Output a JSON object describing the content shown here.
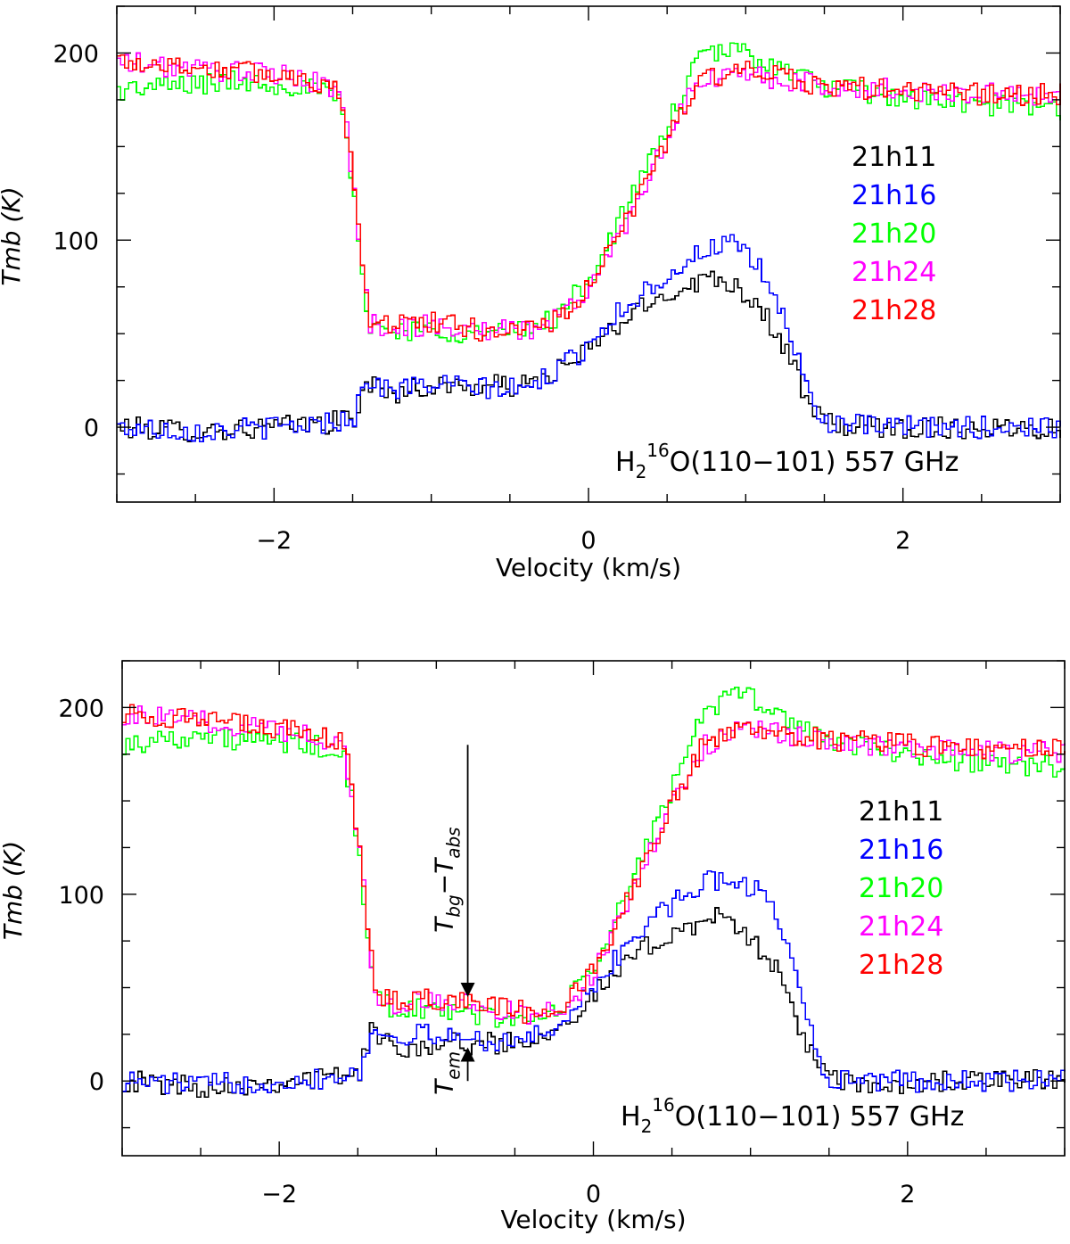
{
  "chart_data": [
    {
      "type": "line",
      "title": "",
      "xlabel": "Velocity (km/s)",
      "ylabel": "Tmb (K)",
      "xlim": [
        -3.0,
        3.0
      ],
      "ylim": [
        -40,
        225
      ],
      "xticks": [
        -2,
        0,
        2
      ],
      "xtick_labels": [
        "−2",
        "0",
        "2"
      ],
      "yticks": [
        0,
        100,
        200
      ],
      "ytick_labels": [
        "0",
        "100",
        "200"
      ],
      "line_label": {
        "prefix": "H",
        "sub": "2",
        "sup": "16",
        "rest": "O(110−101) 557 GHz"
      },
      "legend_position": "right",
      "series": [
        {
          "name": "21h11",
          "color": "#000000",
          "x": [
            -3.0,
            -2.5,
            -2.0,
            -1.7,
            -1.5,
            -1.42,
            -1.3,
            -1.0,
            -0.7,
            -0.4,
            -0.1,
            0.1,
            0.3,
            0.5,
            0.75,
            0.9,
            1.1,
            1.25,
            1.4,
            1.5,
            1.8,
            2.2,
            2.6,
            3.0
          ],
          "values": [
            0,
            -2,
            0,
            2,
            5,
            25,
            18,
            22,
            22,
            22,
            35,
            50,
            62,
            72,
            80,
            78,
            62,
            40,
            10,
            2,
            0,
            0,
            0,
            0
          ]
        },
        {
          "name": "21h16",
          "color": "#0000ff",
          "x": [
            -3.0,
            -2.5,
            -2.0,
            -1.7,
            -1.5,
            -1.42,
            -1.3,
            -1.0,
            -0.7,
            -0.4,
            -0.1,
            0.1,
            0.3,
            0.5,
            0.75,
            0.9,
            1.1,
            1.25,
            1.4,
            1.5,
            1.8,
            2.2,
            2.6,
            3.0
          ],
          "values": [
            0,
            -2,
            0,
            2,
            6,
            27,
            20,
            23,
            21,
            20,
            37,
            55,
            70,
            82,
            96,
            98,
            82,
            55,
            15,
            3,
            0,
            0,
            0,
            0
          ]
        },
        {
          "name": "21h20",
          "color": "#00ff00",
          "x": [
            -3.0,
            -2.6,
            -2.2,
            -1.8,
            -1.6,
            -1.55,
            -1.45,
            -1.4,
            -1.3,
            -1.0,
            -0.7,
            -0.4,
            -0.2,
            0.0,
            0.2,
            0.4,
            0.6,
            0.7,
            0.9,
            1.0,
            1.2,
            1.5,
            2.0,
            2.5,
            3.0
          ],
          "values": [
            180,
            183,
            185,
            182,
            175,
            155,
            80,
            55,
            52,
            52,
            50,
            52,
            60,
            80,
            112,
            145,
            180,
            198,
            202,
            200,
            192,
            182,
            176,
            172,
            170
          ]
        },
        {
          "name": "21h24",
          "color": "#ff00ff",
          "x": [
            -3.0,
            -2.6,
            -2.2,
            -1.8,
            -1.6,
            -1.55,
            -1.45,
            -1.4,
            -1.3,
            -1.0,
            -0.7,
            -0.4,
            -0.2,
            0.0,
            0.2,
            0.4,
            0.6,
            0.7,
            0.9,
            1.0,
            1.2,
            1.5,
            2.0,
            2.5,
            3.0
          ],
          "values": [
            195,
            192,
            190,
            186,
            180,
            160,
            85,
            55,
            54,
            54,
            52,
            52,
            58,
            75,
            105,
            140,
            172,
            185,
            188,
            188,
            186,
            182,
            180,
            178,
            178
          ]
        },
        {
          "name": "21h28",
          "color": "#ff0000",
          "x": [
            -3.0,
            -2.6,
            -2.2,
            -1.8,
            -1.6,
            -1.55,
            -1.45,
            -1.4,
            -1.3,
            -1.0,
            -0.7,
            -0.4,
            -0.2,
            0.0,
            0.2,
            0.4,
            0.6,
            0.7,
            0.9,
            1.0,
            1.2,
            1.5,
            2.0,
            2.5,
            3.0
          ],
          "values": [
            196,
            193,
            190,
            187,
            180,
            160,
            85,
            58,
            56,
            56,
            52,
            52,
            58,
            75,
            105,
            140,
            172,
            185,
            190,
            190,
            187,
            182,
            180,
            178,
            178
          ]
        }
      ]
    },
    {
      "type": "line",
      "title": "",
      "xlabel": "Velocity (km/s)",
      "ylabel": "Tmb (K)",
      "xlim": [
        -3.0,
        3.0
      ],
      "ylim": [
        -40,
        225
      ],
      "xticks": [
        -2,
        0,
        2
      ],
      "xtick_labels": [
        "−2",
        "0",
        "2"
      ],
      "yticks": [
        0,
        100,
        200
      ],
      "ytick_labels": [
        "0",
        "100",
        "200"
      ],
      "line_label": {
        "prefix": "H",
        "sub": "2",
        "sup": "16",
        "rest": "O(110−101) 557 GHz"
      },
      "legend_position": "right",
      "annotations": {
        "arrow_x": -0.8,
        "abs_arrow_from": 180,
        "abs_arrow_to": 45,
        "em_arrow_from": 0,
        "em_arrow_to": 18,
        "abs_label": {
          "main": "T",
          "sub1": "bg",
          "dash": "−",
          "main2": "T",
          "sub2": "abs"
        },
        "em_label": {
          "main": "T",
          "sub": "em"
        }
      },
      "series": [
        {
          "name": "21h11",
          "color": "#000000",
          "x": [
            -3.0,
            -2.5,
            -2.0,
            -1.7,
            -1.5,
            -1.42,
            -1.3,
            -1.0,
            -0.7,
            -0.4,
            -0.1,
            0.1,
            0.3,
            0.5,
            0.75,
            0.9,
            1.1,
            1.25,
            1.4,
            1.5,
            1.8,
            2.2,
            2.6,
            3.0
          ],
          "values": [
            0,
            -3,
            0,
            2,
            5,
            28,
            18,
            20,
            20,
            22,
            38,
            55,
            70,
            80,
            88,
            82,
            68,
            40,
            10,
            0,
            -3,
            0,
            0,
            0
          ]
        },
        {
          "name": "21h16",
          "color": "#0000ff",
          "x": [
            -3.0,
            -2.5,
            -2.0,
            -1.7,
            -1.5,
            -1.42,
            -1.3,
            -1.0,
            -0.7,
            -0.4,
            -0.1,
            0.1,
            0.3,
            0.5,
            0.75,
            0.9,
            1.1,
            1.25,
            1.4,
            1.5,
            1.8,
            2.2,
            2.6,
            3.0
          ],
          "values": [
            0,
            -2,
            0,
            2,
            6,
            25,
            25,
            24,
            22,
            22,
            40,
            62,
            82,
            95,
            108,
            108,
            98,
            70,
            15,
            2,
            0,
            0,
            0,
            0
          ]
        },
        {
          "name": "21h20",
          "color": "#00ff00",
          "x": [
            -3.0,
            -2.6,
            -2.2,
            -1.8,
            -1.6,
            -1.55,
            -1.45,
            -1.4,
            -1.3,
            -1.0,
            -0.7,
            -0.4,
            -0.2,
            0.0,
            0.2,
            0.4,
            0.6,
            0.7,
            0.9,
            1.0,
            1.2,
            1.5,
            2.0,
            2.5,
            3.0
          ],
          "values": [
            180,
            185,
            182,
            180,
            172,
            150,
            80,
            45,
            40,
            38,
            35,
            32,
            40,
            62,
            100,
            140,
            180,
            200,
            205,
            205,
            195,
            182,
            175,
            170,
            168
          ]
        },
        {
          "name": "21h24",
          "color": "#ff00ff",
          "x": [
            -3.0,
            -2.6,
            -2.2,
            -1.8,
            -1.6,
            -1.55,
            -1.45,
            -1.4,
            -1.3,
            -1.0,
            -0.7,
            -0.4,
            -0.2,
            0.0,
            0.2,
            0.4,
            0.6,
            0.7,
            0.9,
            1.0,
            1.2,
            1.5,
            2.0,
            2.5,
            3.0
          ],
          "values": [
            196,
            193,
            190,
            186,
            178,
            155,
            85,
            45,
            42,
            42,
            40,
            35,
            40,
            58,
            95,
            132,
            165,
            180,
            188,
            188,
            185,
            182,
            178,
            176,
            176
          ]
        },
        {
          "name": "21h28",
          "color": "#ff0000",
          "x": [
            -3.0,
            -2.6,
            -2.2,
            -1.8,
            -1.6,
            -1.55,
            -1.45,
            -1.4,
            -1.3,
            -1.0,
            -0.7,
            -0.4,
            -0.2,
            0.0,
            0.2,
            0.4,
            0.6,
            0.7,
            0.9,
            1.0,
            1.2,
            1.5,
            2.0,
            2.5,
            3.0
          ],
          "values": [
            197,
            194,
            190,
            187,
            180,
            158,
            85,
            46,
            44,
            44,
            42,
            36,
            42,
            60,
            96,
            133,
            166,
            181,
            189,
            189,
            186,
            183,
            180,
            178,
            178
          ]
        }
      ]
    }
  ]
}
